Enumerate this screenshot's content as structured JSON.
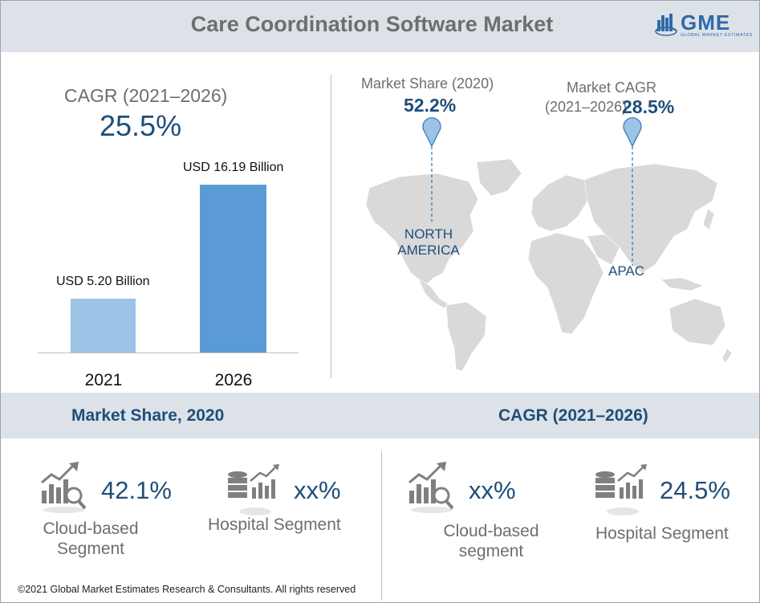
{
  "header": {
    "title": "Care Coordination Software Market",
    "logo_text": "GME",
    "logo_sub": "GLOBAL MARKET ESTIMATES"
  },
  "cagr": {
    "label": "CAGR (2021–2026)",
    "value": "25.5%"
  },
  "chart_data": {
    "type": "bar",
    "categories": [
      "2021",
      "2026"
    ],
    "values": [
      5.2,
      16.19
    ],
    "data_labels": [
      "USD 5.20 Billion",
      "USD 16.19 Billion"
    ],
    "colors": [
      "#9dc3e6",
      "#5b9bd5"
    ],
    "title": "",
    "xlabel": "",
    "ylabel": "",
    "grid": false
  },
  "map": {
    "market_share_title": "Market Share (2020)",
    "market_share_value": "52.2%",
    "market_cagr_title_1": "Market CAGR",
    "market_cagr_title_2": "(2021–2026)",
    "market_cagr_value": "28.5%",
    "region_na_1": "NORTH",
    "region_na_2": "AMERICA",
    "region_apac": "APAC",
    "pin_color": "#9dc3e6"
  },
  "sections": {
    "market_share": "Market Share, 2020",
    "cagr": "CAGR (2021–2026)"
  },
  "stats": {
    "ms_cloud_value": "42.1%",
    "ms_cloud_label_1": "Cloud-based",
    "ms_cloud_label_2": "Segment",
    "ms_hospital_value": "xx%",
    "ms_hospital_label": "Hospital Segment",
    "cagr_cloud_value": "xx%",
    "cagr_cloud_label_1": "Cloud-based",
    "cagr_cloud_label_2": "segment",
    "cagr_hospital_value": "24.5%",
    "cagr_hospital_label": "Hospital Segment"
  },
  "footer": "©2021 Global Market Estimates Research & Consultants. All rights reserved"
}
